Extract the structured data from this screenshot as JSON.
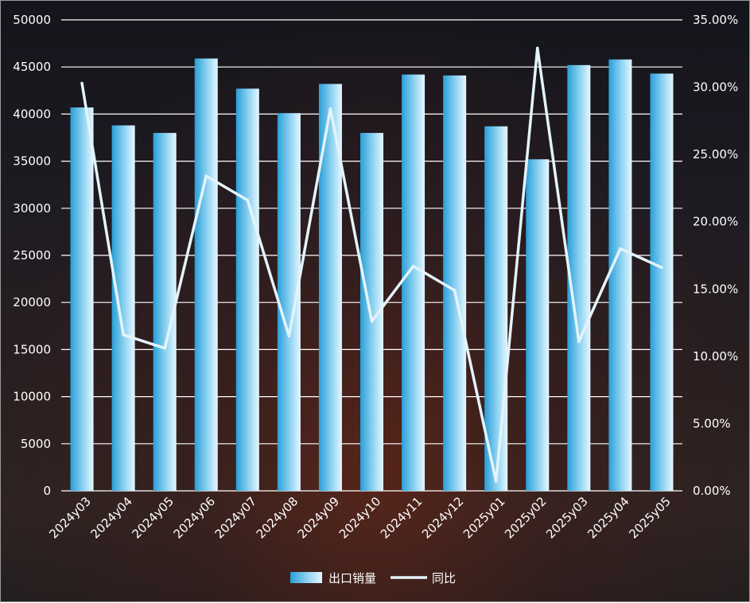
{
  "chart_data": {
    "type": "bar",
    "categories": [
      "2024y03",
      "2024y04",
      "2024y05",
      "2024y06",
      "2024y07",
      "2024y08",
      "2024y09",
      "2024y10",
      "2024y11",
      "2024y12",
      "2025y01",
      "2025y02",
      "2025y03",
      "2025y04",
      "2025y05"
    ],
    "series": [
      {
        "name": "出口销量",
        "type": "bar",
        "axis": "left",
        "values": [
          40700,
          38800,
          38000,
          45900,
          42700,
          40100,
          43200,
          38000,
          44200,
          44100,
          38700,
          35200,
          45200,
          45800,
          44300
        ]
      },
      {
        "name": "同比",
        "type": "line",
        "axis": "right",
        "values": [
          30.3,
          11.6,
          10.6,
          23.4,
          21.6,
          11.5,
          28.4,
          12.6,
          16.7,
          14.9,
          0.7,
          32.9,
          11.1,
          18.0,
          16.6
        ]
      }
    ],
    "y_left": {
      "ticks": [
        "0",
        "5000",
        "10000",
        "15000",
        "20000",
        "25000",
        "30000",
        "35000",
        "40000",
        "45000",
        "50000"
      ],
      "lim": [
        0,
        50000
      ]
    },
    "y_right": {
      "ticks": [
        "0.00%",
        "5.00%",
        "10.00%",
        "15.00%",
        "20.00%",
        "25.00%",
        "30.00%",
        "35.00%"
      ],
      "lim": [
        0,
        35
      ]
    },
    "grid": true,
    "legend_position": "bottom",
    "colors": {
      "bar_dark": "#2a9fd8",
      "bar_light": "#e6f7ff",
      "line": "#e4f3fa",
      "grid": "#ffffff"
    }
  }
}
